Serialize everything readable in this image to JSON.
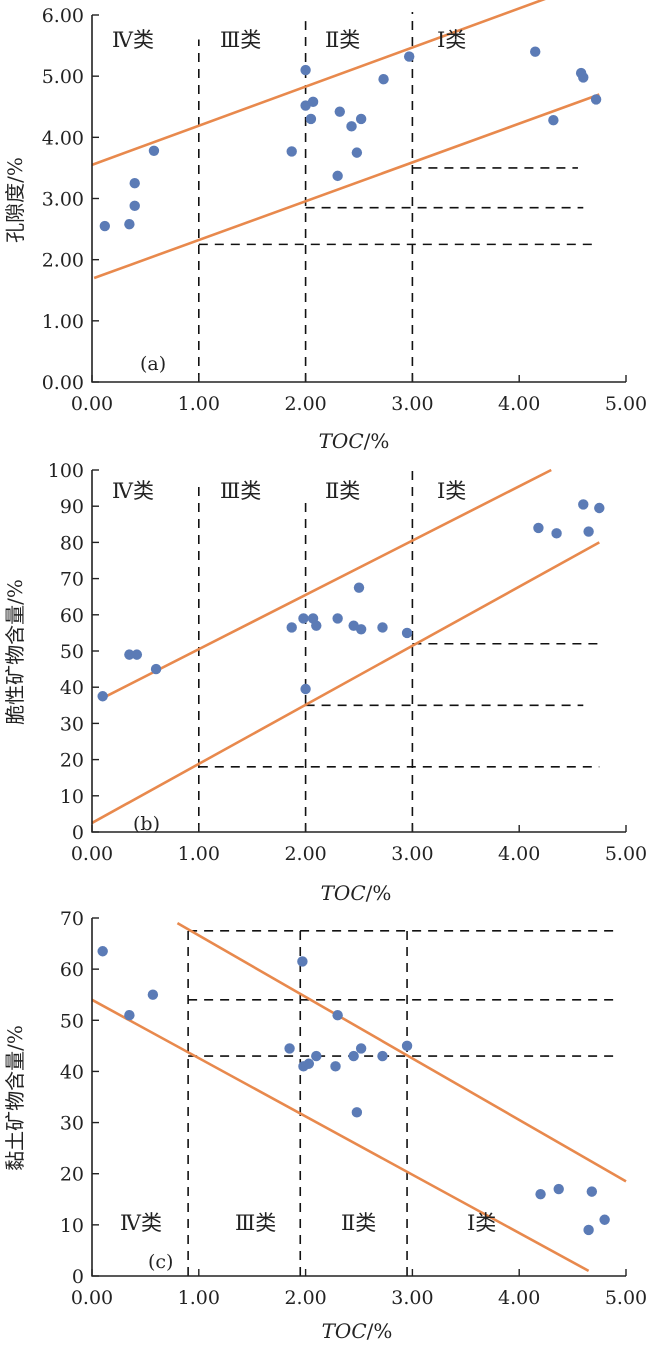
{
  "colors": {
    "point": "#5b7bb6",
    "trend": "#e8894d",
    "axis": "#222222",
    "divider": "#111111"
  },
  "chart_data": [
    {
      "type": "scatter",
      "panel_label": "(a)",
      "xlabel_main": "TOC",
      "xlabel_unit": "/%",
      "ylabel": "孔隙度/%",
      "xlim": [
        0,
        5
      ],
      "ylim": [
        0,
        6
      ],
      "x_ticks": [
        "0.00",
        "1.00",
        "2.00",
        "3.00",
        "4.00",
        "5.00"
      ],
      "y_ticks": [
        "0.00",
        "1.00",
        "2.00",
        "3.00",
        "4.00",
        "5.00",
        "6.00"
      ],
      "class_labels": [
        "Ⅳ类",
        "Ⅲ类",
        "Ⅱ类",
        "Ⅰ类"
      ],
      "points": [
        [
          0.12,
          2.55
        ],
        [
          0.35,
          2.58
        ],
        [
          0.4,
          3.25
        ],
        [
          0.4,
          2.88
        ],
        [
          0.58,
          3.78
        ],
        [
          1.87,
          3.77
        ],
        [
          2.0,
          5.1
        ],
        [
          2.0,
          4.52
        ],
        [
          2.05,
          4.3
        ],
        [
          2.07,
          4.58
        ],
        [
          2.3,
          3.37
        ],
        [
          2.32,
          4.42
        ],
        [
          2.43,
          4.18
        ],
        [
          2.48,
          3.75
        ],
        [
          2.52,
          4.3
        ],
        [
          2.73,
          4.95
        ],
        [
          2.97,
          5.32
        ],
        [
          4.15,
          5.4
        ],
        [
          4.32,
          4.28
        ],
        [
          4.58,
          5.05
        ],
        [
          4.6,
          4.98
        ],
        [
          4.72,
          4.62
        ]
      ],
      "trend_lines": [
        [
          [
            0.0,
            3.55
          ],
          [
            4.3,
            6.3
          ]
        ],
        [
          [
            0.02,
            1.7
          ],
          [
            4.75,
            4.7
          ]
        ]
      ],
      "vertical_dividers": [
        [
          1.0,
          0.0,
          5.6
        ],
        [
          2.0,
          0.0,
          5.9
        ],
        [
          3.0,
          0.0,
          6.05
        ]
      ],
      "horizontal_dividers": [
        [
          1.0,
          4.72,
          2.25
        ],
        [
          2.0,
          4.6,
          2.85
        ],
        [
          3.0,
          4.55,
          3.5
        ]
      ]
    },
    {
      "type": "scatter",
      "panel_label": "(b)",
      "xlabel_main": "TOC",
      "xlabel_unit": "/%",
      "ylabel": "脆性矿物含量/%",
      "xlim": [
        0,
        5
      ],
      "ylim": [
        0,
        100
      ],
      "x_ticks": [
        "0.00",
        "1.00",
        "2.00",
        "3.00",
        "4.00",
        "5.00"
      ],
      "y_ticks": [
        "0",
        "10",
        "20",
        "30",
        "40",
        "50",
        "60",
        "70",
        "80",
        "90",
        "100"
      ],
      "class_labels": [
        "Ⅳ类",
        "Ⅲ类",
        "Ⅱ类",
        "Ⅰ类"
      ],
      "points": [
        [
          0.1,
          37.5
        ],
        [
          0.35,
          49
        ],
        [
          0.42,
          49
        ],
        [
          0.6,
          45
        ],
        [
          1.87,
          56.5
        ],
        [
          1.98,
          59
        ],
        [
          2.0,
          39.5
        ],
        [
          2.07,
          59
        ],
        [
          2.1,
          57
        ],
        [
          2.3,
          59
        ],
        [
          2.45,
          57
        ],
        [
          2.5,
          67.5
        ],
        [
          2.52,
          56
        ],
        [
          2.72,
          56.5
        ],
        [
          2.95,
          55
        ],
        [
          4.18,
          84
        ],
        [
          4.35,
          82.5
        ],
        [
          4.6,
          90.5
        ],
        [
          4.65,
          83
        ],
        [
          4.75,
          89.5
        ]
      ],
      "trend_lines": [
        [
          [
            0.1,
            37
          ],
          [
            4.3,
            100
          ]
        ],
        [
          [
            0.0,
            2.5
          ],
          [
            4.75,
            80
          ]
        ]
      ],
      "vertical_dividers": [
        [
          1.0,
          0,
          96
        ],
        [
          2.0,
          0,
          92
        ],
        [
          3.0,
          0,
          100
        ]
      ],
      "horizontal_dividers": [
        [
          1.0,
          4.75,
          18
        ],
        [
          2.0,
          4.6,
          35
        ],
        [
          3.0,
          4.75,
          52
        ]
      ]
    },
    {
      "type": "scatter",
      "panel_label": "(c)",
      "xlabel_main": "TOC",
      "xlabel_unit": "/%",
      "ylabel": "黏土矿物含量/%",
      "xlim": [
        0,
        5
      ],
      "ylim": [
        0,
        70
      ],
      "x_ticks": [
        "0.00",
        "1.00",
        "2.00",
        "3.00",
        "4.00",
        "5.00"
      ],
      "y_ticks": [
        "0",
        "10",
        "20",
        "30",
        "40",
        "50",
        "60",
        "70"
      ],
      "class_labels": [
        "Ⅳ类",
        "Ⅲ类",
        "Ⅱ类",
        "Ⅰ类"
      ],
      "points": [
        [
          0.1,
          63.5
        ],
        [
          0.35,
          51
        ],
        [
          0.57,
          55
        ],
        [
          1.85,
          44.5
        ],
        [
          1.97,
          61.5
        ],
        [
          1.98,
          41
        ],
        [
          2.03,
          41.5
        ],
        [
          2.1,
          43
        ],
        [
          2.28,
          41
        ],
        [
          2.3,
          51
        ],
        [
          2.45,
          43
        ],
        [
          2.48,
          32
        ],
        [
          2.52,
          44.5
        ],
        [
          2.72,
          43
        ],
        [
          2.95,
          45
        ],
        [
          4.2,
          16
        ],
        [
          4.37,
          17
        ],
        [
          4.65,
          9
        ],
        [
          4.68,
          16.5
        ],
        [
          4.8,
          11
        ]
      ],
      "trend_lines": [
        [
          [
            0.0,
            54
          ],
          [
            4.65,
            1
          ]
        ],
        [
          [
            0.8,
            69
          ],
          [
            5.0,
            18.5
          ]
        ]
      ],
      "vertical_dividers": [
        [
          0.9,
          0,
          67.5
        ],
        [
          1.95,
          0,
          67.5
        ],
        [
          2.95,
          0,
          67.5
        ]
      ],
      "horizontal_dividers": [
        [
          0.9,
          4.9,
          43
        ],
        [
          0.9,
          4.9,
          54
        ],
        [
          0.9,
          4.9,
          67.5
        ]
      ]
    }
  ]
}
